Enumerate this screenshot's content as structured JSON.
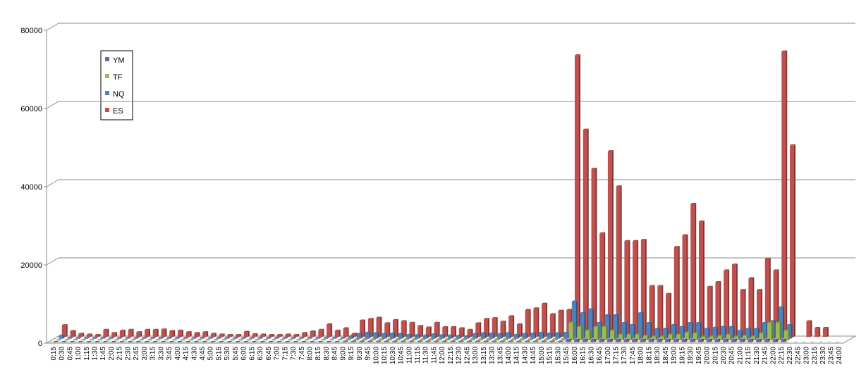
{
  "chart_data": {
    "type": "bar3d",
    "categories": [
      "0:15",
      "0:30",
      "0:45",
      "1:00",
      "1:15",
      "1:30",
      "1:45",
      "2:00",
      "2:15",
      "2:30",
      "2:45",
      "3:00",
      "3:15",
      "3:30",
      "3:45",
      "4:00",
      "4:15",
      "4:30",
      "4:45",
      "5:00",
      "5:15",
      "5:30",
      "5:45",
      "6:00",
      "6:15",
      "6:30",
      "6:45",
      "7:00",
      "7:15",
      "7:30",
      "7:45",
      "8:00",
      "8:15",
      "8:30",
      "8:45",
      "9:00",
      "9:15",
      "9:30",
      "9:45",
      "10:00",
      "10:15",
      "10:30",
      "10:45",
      "11:00",
      "11:15",
      "11:30",
      "11:45",
      "12:00",
      "12:15",
      "12:30",
      "12:45",
      "13:00",
      "13:15",
      "13:30",
      "13:45",
      "14:00",
      "14:15",
      "14:30",
      "14:45",
      "15:00",
      "15:15",
      "15:30",
      "15:45",
      "16:00",
      "16:15",
      "16:30",
      "16:45",
      "17:00",
      "17:15",
      "17:30",
      "17:45",
      "18:00",
      "18:15",
      "18:30",
      "18:45",
      "19:00",
      "19:15",
      "19:30",
      "19:45",
      "20:00",
      "20:15",
      "20:30",
      "20:45",
      "21:00",
      "21:15",
      "21:30",
      "21:45",
      "22:00",
      "22:15",
      "22:30",
      "22:45",
      "23:00",
      "23:15",
      "23:30",
      "23:45",
      "24:00"
    ],
    "series": [
      {
        "name": "YM",
        "color": "#7d60a0",
        "values": [
          50,
          50,
          50,
          50,
          50,
          50,
          50,
          50,
          50,
          50,
          50,
          50,
          50,
          50,
          50,
          50,
          50,
          50,
          50,
          50,
          50,
          50,
          50,
          50,
          50,
          50,
          50,
          50,
          50,
          50,
          50,
          50,
          50,
          50,
          50,
          150,
          150,
          150,
          150,
          150,
          150,
          150,
          150,
          150,
          150,
          150,
          150,
          150,
          150,
          150,
          150,
          150,
          150,
          150,
          150,
          150,
          150,
          150,
          150,
          150,
          150,
          150,
          600,
          600,
          600,
          600,
          600,
          600,
          600,
          600,
          600,
          600,
          600,
          600,
          600,
          600,
          600,
          600,
          600,
          600,
          600,
          600,
          600,
          600,
          600,
          600,
          600,
          600,
          600,
          0,
          0,
          0,
          0,
          0,
          0,
          0
        ]
      },
      {
        "name": "TF",
        "color": "#9bbb59",
        "values": [
          100,
          100,
          100,
          100,
          100,
          100,
          100,
          100,
          100,
          100,
          100,
          100,
          100,
          100,
          100,
          100,
          100,
          100,
          100,
          100,
          100,
          100,
          100,
          100,
          100,
          100,
          100,
          100,
          100,
          100,
          100,
          100,
          100,
          100,
          100,
          300,
          300,
          300,
          300,
          300,
          300,
          300,
          300,
          300,
          300,
          300,
          300,
          300,
          300,
          300,
          300,
          300,
          300,
          300,
          300,
          300,
          300,
          300,
          300,
          300,
          300,
          300,
          4500,
          3500,
          2500,
          3500,
          3500,
          2500,
          1500,
          1500,
          1500,
          1200,
          1000,
          1000,
          1500,
          1500,
          2000,
          1800,
          1000,
          1000,
          1200,
          1500,
          1000,
          1200,
          1000,
          1800,
          4500,
          4500,
          2500,
          0,
          0,
          0,
          0,
          0,
          0,
          0
        ]
      },
      {
        "name": "NQ",
        "color": "#4f81bd",
        "values": [
          800,
          200,
          200,
          200,
          200,
          200,
          200,
          200,
          200,
          200,
          200,
          200,
          200,
          200,
          200,
          200,
          200,
          200,
          200,
          200,
          200,
          200,
          200,
          200,
          200,
          200,
          200,
          200,
          200,
          200,
          200,
          200,
          200,
          200,
          200,
          600,
          1200,
          1500,
          1400,
          1200,
          1300,
          1200,
          1000,
          900,
          800,
          1100,
          900,
          800,
          700,
          600,
          1200,
          1400,
          1300,
          1200,
          1400,
          1000,
          1200,
          1300,
          1500,
          1300,
          1400,
          1500,
          9500,
          6500,
          7500,
          4000,
          6000,
          6000,
          4000,
          3500,
          6500,
          4000,
          2500,
          2500,
          3500,
          3000,
          4000,
          4000,
          2500,
          2800,
          3000,
          3000,
          2000,
          2500,
          2500,
          4000,
          4500,
          8000,
          3500,
          0,
          0,
          0,
          0,
          0,
          0,
          0
        ]
      },
      {
        "name": "ES",
        "color": "#c0504d",
        "values": [
          3000,
          1500,
          800,
          600,
          500,
          1800,
          1000,
          1600,
          1800,
          1200,
          1800,
          1800,
          1900,
          1500,
          1600,
          1200,
          1000,
          1200,
          800,
          600,
          500,
          500,
          1300,
          700,
          600,
          500,
          500,
          600,
          500,
          1000,
          1400,
          1800,
          3200,
          1600,
          2200,
          800,
          4200,
          4600,
          4900,
          3500,
          4300,
          4000,
          3600,
          2800,
          2400,
          3600,
          2500,
          2500,
          2200,
          1800,
          3500,
          4600,
          4800,
          3900,
          5300,
          3200,
          6900,
          7300,
          8500,
          5800,
          6700,
          6900,
          72000,
          53000,
          43000,
          26500,
          47500,
          38500,
          24500,
          24500,
          24800,
          13000,
          13000,
          11000,
          23000,
          26000,
          34000,
          29500,
          12800,
          14000,
          17000,
          18500,
          12000,
          15000,
          12000,
          20000,
          17000,
          73000,
          49000,
          0,
          4000,
          2300,
          2300,
          0,
          0,
          0
        ]
      }
    ],
    "ylim": [
      0,
      80000
    ],
    "yticks": [
      0,
      20000,
      40000,
      60000,
      80000
    ],
    "grid": true,
    "legend": "top-left"
  }
}
